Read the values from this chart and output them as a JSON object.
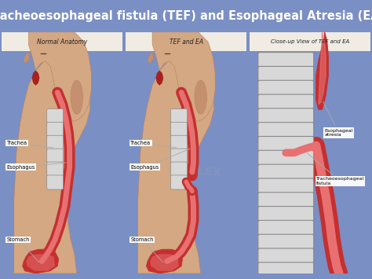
{
  "title": "Tracheoesophageal fistula (TEF) and Esophageal Atresia (EA)",
  "title_color": "#FFFFFF",
  "title_bg_color": "#1a2d7a",
  "bg_color": "#7a8fc4",
  "panel_bg_color": "#c9b49a",
  "panel_title_bg": "#f0ece4",
  "panel_titles": [
    "Normal Anatomy",
    "TEF and EA",
    "Close-up View of TEF and EA"
  ],
  "panel_title_color": "#222222",
  "label_box_color": "#FFFFFF",
  "label_text_color": "#000000",
  "trachea_light": "#d8d8d8",
  "trachea_dark": "#888888",
  "esophagus_outer": "#c43030",
  "esophagus_inner": "#e87070",
  "skin_color": "#d4a882",
  "skin_dark": "#b88060",
  "closeup_bg": "#c9b49a",
  "watermark_text": "TRIALEX",
  "watermark_color": "#8899bb"
}
